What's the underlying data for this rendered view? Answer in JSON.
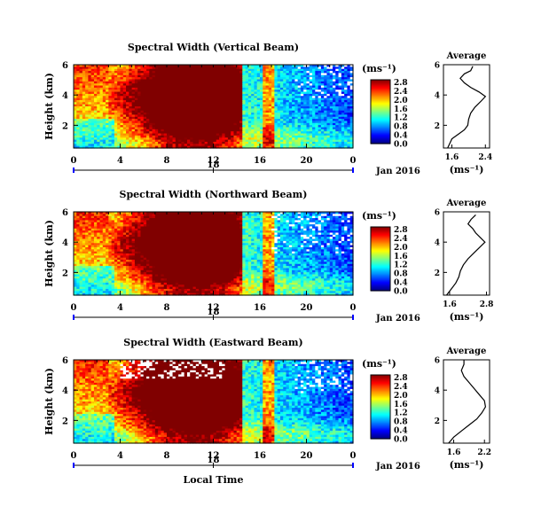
{
  "figure": {
    "xlabel": "Local Time",
    "day_label": "18",
    "month_label": "Jan 2016",
    "ylabel": "Height (km)",
    "cbar_unit": "(ms⁻¹)",
    "avg_title": "Average",
    "avg_xlabel": "(ms⁻¹)"
  },
  "colors": {
    "background": "#ffffff",
    "axis": "#000000",
    "time_axis_accent": "#0000ff",
    "missing": "#ffffff"
  },
  "chart_data": [
    {
      "type": "heatmap",
      "title": "Spectral Width (Vertical Beam)",
      "x_ticks": [
        "0",
        "4",
        "8",
        "12",
        "16",
        "20",
        "0"
      ],
      "xlim": [
        0,
        24
      ],
      "y_ticks": [
        "2",
        "4",
        "6"
      ],
      "ylim": [
        0.5,
        6
      ],
      "colorbar_ticks": [
        "0.0",
        "0.4",
        "0.8",
        "1.2",
        "1.6",
        "2.0",
        "2.4",
        "2.8"
      ],
      "colorbar_range": [
        0,
        2.9
      ],
      "avg_profile": {
        "title": "Average",
        "x_ticks": [
          "1.6",
          "2.4"
        ],
        "xlim": [
          1.4,
          2.5
        ],
        "y_ticks": [
          "2",
          "4",
          "6"
        ],
        "ylim": [
          0.5,
          6
        ],
        "points": [
          [
            1.5,
            0.5
          ],
          [
            1.55,
            0.8
          ],
          [
            1.6,
            1.1
          ],
          [
            1.75,
            1.4
          ],
          [
            1.9,
            1.7
          ],
          [
            1.98,
            2.0
          ],
          [
            2.0,
            2.4
          ],
          [
            2.05,
            2.8
          ],
          [
            2.15,
            3.2
          ],
          [
            2.3,
            3.6
          ],
          [
            2.4,
            3.9
          ],
          [
            2.25,
            4.2
          ],
          [
            2.05,
            4.5
          ],
          [
            1.9,
            4.8
          ],
          [
            1.8,
            5.1
          ],
          [
            1.9,
            5.4
          ],
          [
            2.05,
            5.6
          ],
          [
            2.1,
            5.9
          ]
        ]
      }
    },
    {
      "type": "heatmap",
      "title": "Spectral Width (Northward Beam)",
      "x_ticks": [
        "0",
        "4",
        "8",
        "12",
        "16",
        "20",
        "0"
      ],
      "xlim": [
        0,
        24
      ],
      "y_ticks": [
        "2",
        "4",
        "6"
      ],
      "ylim": [
        0.5,
        6
      ],
      "colorbar_ticks": [
        "0.0",
        "0.4",
        "0.8",
        "1.2",
        "1.6",
        "2.0",
        "2.4",
        "2.8"
      ],
      "colorbar_range": [
        0,
        2.9
      ],
      "avg_profile": {
        "title": "Average",
        "x_ticks": [
          "1.6",
          "2.8"
        ],
        "xlim": [
          1.4,
          2.9
        ],
        "y_ticks": [
          "2",
          "4",
          "6"
        ],
        "ylim": [
          0.5,
          6
        ],
        "points": [
          [
            1.5,
            0.5
          ],
          [
            1.65,
            0.9
          ],
          [
            1.8,
            1.3
          ],
          [
            1.9,
            1.7
          ],
          [
            1.95,
            2.1
          ],
          [
            2.05,
            2.5
          ],
          [
            2.2,
            2.9
          ],
          [
            2.4,
            3.3
          ],
          [
            2.6,
            3.7
          ],
          [
            2.75,
            4.0
          ],
          [
            2.6,
            4.3
          ],
          [
            2.45,
            4.6
          ],
          [
            2.35,
            4.9
          ],
          [
            2.2,
            5.2
          ],
          [
            2.3,
            5.5
          ],
          [
            2.45,
            5.8
          ]
        ]
      }
    },
    {
      "type": "heatmap",
      "title": "Spectral Width (Eastward Beam)",
      "x_ticks": [
        "0",
        "4",
        "8",
        "12",
        "16",
        "20",
        "0"
      ],
      "xlim": [
        0,
        24
      ],
      "y_ticks": [
        "2",
        "4",
        "6"
      ],
      "ylim": [
        0.5,
        6
      ],
      "colorbar_ticks": [
        "0.0",
        "0.4",
        "0.8",
        "1.2",
        "1.6",
        "2.0",
        "2.4",
        "2.8"
      ],
      "colorbar_range": [
        0,
        2.9
      ],
      "avg_profile": {
        "title": "Average",
        "x_ticks": [
          "1.6",
          "2.2"
        ],
        "xlim": [
          1.4,
          2.3
        ],
        "y_ticks": [
          "2",
          "4",
          "6"
        ],
        "ylim": [
          0.5,
          6
        ],
        "points": [
          [
            1.5,
            0.5
          ],
          [
            1.6,
            0.9
          ],
          [
            1.75,
            1.3
          ],
          [
            1.9,
            1.7
          ],
          [
            2.05,
            2.1
          ],
          [
            2.15,
            2.5
          ],
          [
            2.22,
            2.9
          ],
          [
            2.2,
            3.3
          ],
          [
            2.1,
            3.7
          ],
          [
            2.0,
            4.1
          ],
          [
            1.9,
            4.5
          ],
          [
            1.8,
            4.9
          ],
          [
            1.75,
            5.3
          ],
          [
            1.8,
            5.7
          ],
          [
            1.8,
            6.0
          ]
        ]
      }
    }
  ]
}
